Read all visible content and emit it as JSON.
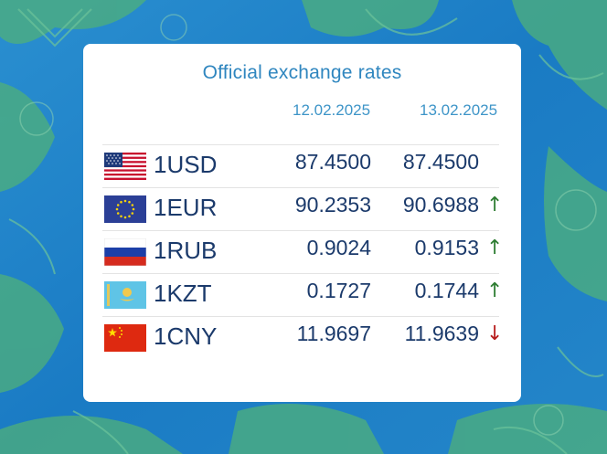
{
  "title": "Official exchange rates",
  "dates": [
    "12.02.2025",
    "13.02.2025"
  ],
  "colors": {
    "up": "#2e7d32",
    "down": "#b71c1c",
    "text": "#1b3a6b",
    "accent": "#2f86bf"
  },
  "rows": [
    {
      "flag": "usa-flag-icon",
      "code": "1USD",
      "rate_old": "87.4500",
      "rate_new": "87.4500",
      "arrow": ""
    },
    {
      "flag": "eu-flag-icon",
      "code": "1EUR",
      "rate_old": "90.2353",
      "rate_new": "90.6988",
      "arrow": "↑"
    },
    {
      "flag": "russia-flag-icon",
      "code": "1RUB",
      "rate_old": "0.9024",
      "rate_new": "0.9153",
      "arrow": "↑"
    },
    {
      "flag": "kazakhstan-flag-icon",
      "code": "1KZT",
      "rate_old": "0.1727",
      "rate_new": "0.1744",
      "arrow": "↑"
    },
    {
      "flag": "china-flag-icon",
      "code": "1CNY",
      "rate_old": "11.9697",
      "rate_new": "11.9639",
      "arrow": "↓"
    }
  ]
}
